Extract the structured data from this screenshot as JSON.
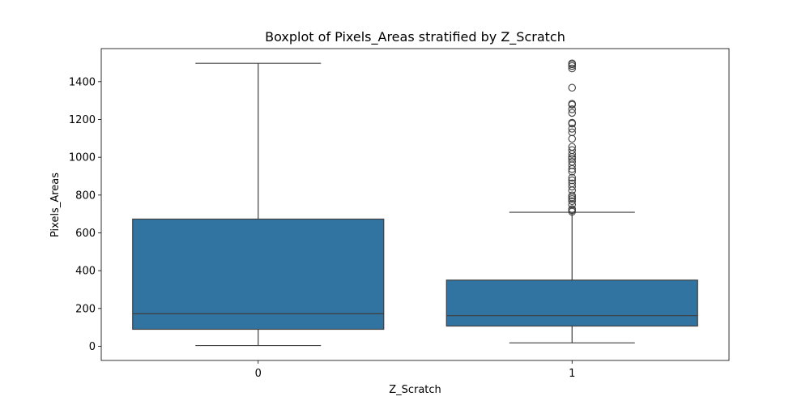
{
  "chart_data": {
    "type": "box",
    "title": "Boxplot of Pixels_Areas stratified by Z_Scratch",
    "xlabel": "Z_Scratch",
    "ylabel": "Pixels_Areas",
    "categories": [
      "0",
      "1"
    ],
    "ylim": [
      -75,
      1575
    ],
    "yticks": [
      0,
      200,
      400,
      600,
      800,
      1000,
      1200,
      1400
    ],
    "grid": false,
    "box_color": "#3274a1",
    "line_color": "#3f3f3f",
    "boxes": [
      {
        "category": "0",
        "whisker_low": 4,
        "q1": 90,
        "median": 172,
        "q3": 673,
        "whisker_high": 1497,
        "outliers": []
      },
      {
        "category": "1",
        "whisker_low": 18,
        "q1": 107,
        "median": 162,
        "q3": 350,
        "whisker_high": 709,
        "outliers": [
          712,
          720,
          726,
          750,
          768,
          779,
          788,
          798,
          825,
          845,
          862,
          878,
          892,
          924,
          938,
          958,
          976,
          992,
          1002,
          1018,
          1038,
          1055,
          1098,
          1132,
          1151,
          1178,
          1183,
          1235,
          1254,
          1278,
          1283,
          1368,
          1470,
          1483,
          1492,
          1497
        ]
      }
    ]
  }
}
